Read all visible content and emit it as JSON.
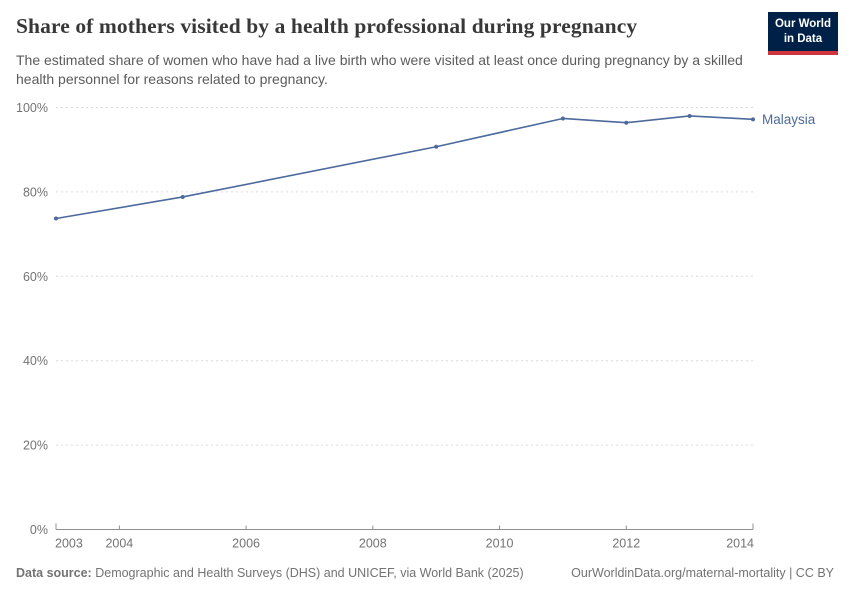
{
  "header": {
    "title": "Share of mothers visited by a health professional during pregnancy",
    "subtitle": "The estimated share of women who have had a live birth who were visited at least once during pregnancy by a skilled health personnel for reasons related to pregnancy.",
    "logo_line1": "Our World",
    "logo_line2": "in Data"
  },
  "chart_data": {
    "type": "line",
    "title": "Share of mothers visited by a health professional during pregnancy",
    "x": [
      2003,
      2005,
      2009,
      2011,
      2012,
      2013,
      2014
    ],
    "series": [
      {
        "name": "Malaysia",
        "color": "#4C6A9C",
        "values": [
          73.7,
          78.8,
          90.7,
          97.4,
          96.4,
          98.0,
          97.2
        ]
      }
    ],
    "xlabel": "",
    "ylabel": "",
    "xlim": [
      2003,
      2014
    ],
    "ylim": [
      0,
      100
    ],
    "xticks": [
      2003,
      2004,
      2006,
      2008,
      2010,
      2012,
      2014
    ],
    "yticks": [
      0,
      20,
      40,
      60,
      80,
      100
    ],
    "ytick_suffix": "%",
    "grid": "horizontal-dashed",
    "legend_position": "line-end-label"
  },
  "colors": {
    "accent": "#4C6A9C",
    "grid": "#dcdcdc",
    "axis": "#8f8f8f",
    "tick_label": "#737373",
    "logo_bg": "#002147",
    "logo_red": "#D0343C",
    "title": "#383838",
    "subtitle": "#5b5b5b",
    "footer": "#737373"
  },
  "footer": {
    "datasource_label": "Data source:",
    "datasource_text": "Demographic and Health Surveys (DHS) and UNICEF, via World Bank (2025)",
    "license": "OurWorldinData.org/maternal-mortality | CC BY"
  }
}
